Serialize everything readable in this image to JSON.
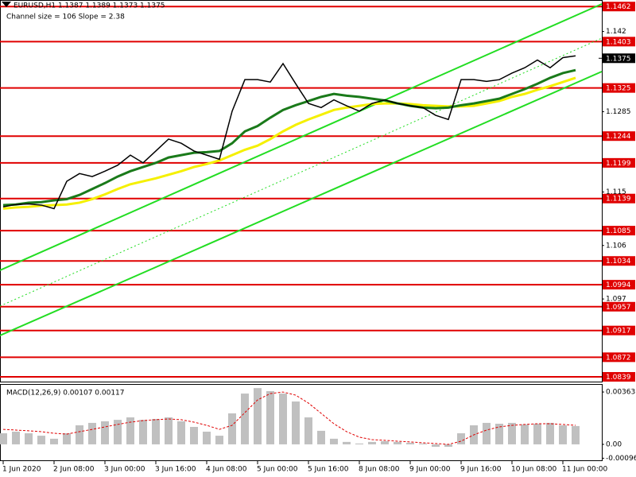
{
  "chart_data": [
    {
      "type": "line",
      "title": "EURUSD,H1  1.1387 1.1389 1.1373 1.1375",
      "subtitle": "Channel size = 106 Slope = 2.38",
      "x": [
        0,
        4,
        8,
        12,
        16,
        20,
        24,
        28,
        32,
        36,
        40,
        44,
        48,
        52,
        56,
        60,
        64,
        68,
        72,
        76,
        80,
        84,
        88,
        92,
        96,
        100,
        104,
        108,
        112,
        116,
        120,
        124,
        128,
        132,
        136,
        140,
        144,
        148,
        152,
        156,
        160,
        164,
        168,
        172,
        176,
        180
      ],
      "xlim": [
        -1,
        188.25
      ],
      "ylim": [
        1.0831,
        1.1473
      ],
      "yticks": [
        1.142,
        1.1285,
        1.115,
        1.106,
        1.097
      ],
      "levels": [
        1.1462,
        1.1403,
        1.1325,
        1.1244,
        1.1199,
        1.1139,
        1.1085,
        1.1034,
        1.0994,
        1.0957,
        1.0917,
        1.0872,
        1.0839
      ],
      "level_color": "#e00000",
      "current_price": 1.1375,
      "series": [
        {
          "color": "#f5f000",
          "values": [
            1.1122,
            1.1124,
            1.1125,
            1.1127,
            1.1128,
            1.1129,
            1.1132,
            1.1138,
            1.1146,
            1.1155,
            1.1163,
            1.1168,
            1.1173,
            1.1179,
            1.1185,
            1.1192,
            1.1197,
            1.1203,
            1.1212,
            1.1221,
            1.1228,
            1.1239,
            1.1252,
            1.1263,
            1.1272,
            1.128,
            1.1288,
            1.1292,
            1.1295,
            1.1298,
            1.1299,
            1.1299,
            1.1298,
            1.1296,
            1.1295,
            1.1294,
            1.1294,
            1.1295,
            1.1299,
            1.1303,
            1.131,
            1.1315,
            1.1322,
            1.1328,
            1.1335,
            1.1342
          ]
        },
        {
          "color": "#1a7a1a",
          "values": [
            1.1128,
            1.1129,
            1.1132,
            1.1133,
            1.1136,
            1.1138,
            1.1145,
            1.1155,
            1.1165,
            1.1176,
            1.1185,
            1.1192,
            1.1199,
            1.1208,
            1.1212,
            1.1216,
            1.1217,
            1.1219,
            1.1232,
            1.1252,
            1.1261,
            1.1275,
            1.1288,
            1.1296,
            1.1303,
            1.131,
            1.1315,
            1.1312,
            1.131,
            1.1307,
            1.1304,
            1.1299,
            1.1295,
            1.1292,
            1.1291,
            1.1292,
            1.1296,
            1.1299,
            1.1303,
            1.1307,
            1.1315,
            1.1323,
            1.1332,
            1.1342,
            1.135,
            1.1355
          ]
        },
        {
          "color": "#000000",
          "values": [
            1.1125,
            1.1129,
            1.113,
            1.1128,
            1.1122,
            1.1168,
            1.1181,
            1.1176,
            1.1185,
            1.1195,
            1.1212,
            1.1199,
            1.1219,
            1.1239,
            1.1232,
            1.1219,
            1.1212,
            1.1205,
            1.1286,
            1.1339,
            1.1339,
            1.1335,
            1.1366,
            1.1332,
            1.1299,
            1.1292,
            1.1305,
            1.1295,
            1.1286,
            1.1299,
            1.1305,
            1.1299,
            1.1295,
            1.1292,
            1.1279,
            1.1272,
            1.1339,
            1.1339,
            1.1336,
            1.1339,
            1.135,
            1.1359,
            1.1372,
            1.1359,
            1.1376,
            1.1379
          ]
        }
      ]
    },
    {
      "type": "bar",
      "title": "MACD(12,26,9) 0.00107 0.00117",
      "x": [
        0,
        4,
        8,
        12,
        16,
        20,
        24,
        28,
        32,
        36,
        40,
        44,
        48,
        52,
        56,
        60,
        64,
        68,
        72,
        76,
        80,
        84,
        88,
        92,
        96,
        100,
        104,
        108,
        112,
        116,
        120,
        124,
        128,
        132,
        136,
        140,
        144,
        148,
        152,
        156,
        160,
        164,
        168,
        172,
        176,
        180
      ],
      "xlim": [
        -1,
        188.25
      ],
      "xticks": [
        {
          "value": 0,
          "label": "1 Jun 2020"
        },
        {
          "value": 16,
          "label": "2 Jun 08:00"
        },
        {
          "value": 32,
          "label": "3 Jun 00:00"
        },
        {
          "value": 48,
          "label": "3 Jun 16:00"
        },
        {
          "value": 64,
          "label": "4 Jun 08:00"
        },
        {
          "value": 80,
          "label": "5 Jun 00:00"
        },
        {
          "value": 96,
          "label": "5 Jun 16:00"
        },
        {
          "value": 112,
          "label": "8 Jun 08:00"
        },
        {
          "value": 128,
          "label": "9 Jun 00:00"
        },
        {
          "value": 144,
          "label": "9 Jun 16:00"
        },
        {
          "value": 160,
          "label": "10 Jun 08:00"
        },
        {
          "value": 176,
          "label": "11 Jun 00:00"
        }
      ],
      "ylim": [
        -0.00116,
        0.00413
      ],
      "yticks": [
        0.00363,
        {
          "value": 0,
          "label": "0.00"
        },
        -0.00096
      ],
      "series": [
        {
          "color": "#c0c0c0",
          "values": [
            0.00077,
            0.00088,
            0.00077,
            0.0006,
            0.00039,
            0.00077,
            0.00132,
            0.00149,
            0.0016,
            0.0017,
            0.00187,
            0.0017,
            0.00176,
            0.00187,
            0.0016,
            0.00121,
            0.00088,
            0.0006,
            0.00215,
            0.00352,
            0.0039,
            0.00369,
            0.00352,
            0.00297,
            0.00187,
            0.00094,
            0.00039,
            0.00017,
            6e-05,
            0.00017,
            0.00022,
            0.00017,
            0.00011,
            6e-05,
            -0.00017,
            -0.00017,
            0.00077,
            0.00132,
            0.00149,
            0.00143,
            0.00149,
            0.00138,
            0.00143,
            0.00149,
            0.00132,
            0.00127
          ]
        },
        {
          "color": "#e00000",
          "values": [
            0.00104,
            0.00099,
            0.00094,
            0.00088,
            0.00077,
            0.00071,
            0.00088,
            0.00104,
            0.00121,
            0.00138,
            0.00154,
            0.00165,
            0.00171,
            0.00176,
            0.00171,
            0.00154,
            0.00132,
            0.00104,
            0.00132,
            0.0022,
            0.00308,
            0.00352,
            0.00363,
            0.00341,
            0.00286,
            0.00215,
            0.00143,
            0.00088,
            0.0005,
            0.00033,
            0.00028,
            0.00022,
            0.00017,
            0.00011,
            6e-05,
            0,
            0.00022,
            0.00066,
            0.00099,
            0.00121,
            0.00132,
            0.00138,
            0.00143,
            0.00143,
            0.00138,
            0.00132
          ]
        }
      ]
    }
  ]
}
